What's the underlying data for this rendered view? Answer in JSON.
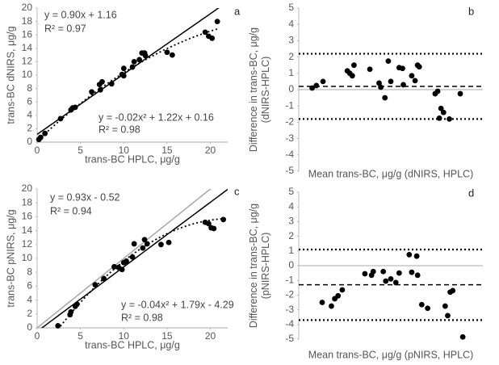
{
  "chart_data": [
    {
      "type": "scatter",
      "panel_label": "a",
      "x_label": "trans-BC HPLC, μg/g",
      "y_label": [
        "trans-BC dNIRS, μg/g"
      ],
      "xlim": [
        0,
        22
      ],
      "xticks": [
        0,
        5,
        10,
        15,
        20
      ],
      "ylim": [
        0,
        20
      ],
      "yticks": [
        0,
        2,
        4,
        6,
        8,
        10,
        12,
        14,
        16,
        18,
        20
      ],
      "annotations": [
        "y = 0.90x + 1.16",
        "R² = 0.97",
        "y = -0.02x² + 1.22x + 0.16",
        "R² = 0.98"
      ],
      "color": "#000000",
      "trendlines": [
        {
          "coef": [
            1.16,
            0.9
          ],
          "style": "solid",
          "color": "#000000"
        },
        {
          "coef": [
            0.16,
            1.22,
            -0.02
          ],
          "style": "dotted",
          "color": "#000000"
        }
      ],
      "x": [
        0.2,
        0.4,
        0.9,
        2.7,
        3.9,
        4.1,
        4.4,
        6.3,
        7.2,
        7.3,
        7.5,
        8.6,
        9.8,
        10.0,
        10.0,
        11.0,
        11.2,
        11.8,
        12.1,
        12.4,
        12.5,
        15.0,
        15.6,
        19.4,
        19.8,
        20.2,
        20.8
      ],
      "values": [
        0.4,
        0.7,
        1.3,
        3.5,
        4.8,
        5.1,
        5.2,
        7.5,
        8.6,
        7.8,
        9.0,
        8.7,
        10.1,
        9.9,
        11.0,
        11.2,
        12.0,
        12.3,
        13.3,
        13.3,
        12.9,
        13.4,
        13.0,
        16.4,
        15.8,
        15.5,
        18.0
      ]
    },
    {
      "type": "bland-altman",
      "panel_label": "b",
      "x_label": "Mean trans-BC, μg/g (dNIRS, HPLC)",
      "y_label": [
        "Difference in trans-BC, μg/g",
        "(dNIRS-HPLC)"
      ],
      "xlim": [
        0,
        22
      ],
      "ylim": [
        -5,
        5
      ],
      "yticks": [
        -5,
        -4,
        -3,
        -2,
        -1,
        0,
        1,
        2,
        3,
        4,
        5
      ],
      "color": "#000000",
      "hlines": [
        {
          "value": 2.2,
          "style": "dotted"
        },
        {
          "value": 0.2,
          "style": "dashed"
        },
        {
          "value": -1.8,
          "style": "dotted"
        }
      ],
      "x": [
        1.6,
        2.1,
        2.9,
        5.8,
        6.1,
        6.4,
        6.6,
        8.5,
        9.6,
        9.8,
        10.3,
        10.7,
        11.0,
        12.0,
        12.4,
        12.5,
        13.5,
        13.9,
        14.2,
        14.4,
        16.3,
        16.6,
        16.8,
        17.0,
        17.3,
        18.0,
        19.3
      ],
      "values": [
        0.1,
        0.25,
        0.5,
        1.15,
        1.0,
        0.85,
        1.5,
        1.25,
        0.4,
        0.15,
        -0.5,
        1.75,
        0.5,
        1.35,
        1.3,
        0.3,
        0.85,
        0.55,
        1.5,
        1.4,
        -0.25,
        -0.1,
        -1.75,
        -1.15,
        -1.4,
        -1.8,
        -0.25
      ]
    },
    {
      "type": "scatter",
      "panel_label": "c",
      "x_label": "trans-BC HPLC, μg/g",
      "y_label": [
        "trans-BC pNIRS, μg/g"
      ],
      "xlim": [
        0,
        22
      ],
      "xticks": [
        0,
        5,
        10,
        15,
        20
      ],
      "ylim": [
        0,
        20
      ],
      "yticks": [
        0,
        2,
        4,
        6,
        8,
        10,
        12,
        14,
        16,
        18,
        20
      ],
      "annotations": [
        "y = 0.93x - 0.52",
        "R² = 0.94",
        "y = -0.04x² + 1.79x - 4.29",
        "R² = 0.98"
      ],
      "color": "#000000",
      "trendlines": [
        {
          "coef": [
            0,
            1
          ],
          "style": "solid",
          "color": "#a6a6a6"
        },
        {
          "coef": [
            -0.52,
            0.93
          ],
          "style": "solid",
          "color": "#000000"
        },
        {
          "coef": [
            -4.29,
            1.79,
            -0.04
          ],
          "style": "dotted",
          "color": "#000000"
        }
      ],
      "x": [
        2.4,
        3.8,
        3.9,
        4.4,
        4.6,
        6.7,
        7.7,
        8.9,
        9.4,
        9.8,
        10.0,
        10.3,
        11.0,
        11.2,
        12.2,
        12.4,
        12.7,
        14.3,
        15.2,
        19.4,
        19.8,
        20.1,
        20.4,
        21.5
      ],
      "values": [
        0.3,
        1.9,
        2.3,
        3.1,
        3.4,
        6.2,
        7.1,
        8.8,
        8.7,
        8.4,
        9.4,
        9.6,
        10.2,
        12.1,
        11.5,
        12.7,
        12.1,
        12.0,
        12.3,
        15.2,
        15.0,
        14.4,
        14.3,
        15.6
      ]
    },
    {
      "type": "bland-altman",
      "panel_label": "d",
      "x_label": "Mean trans-BC, μg/g (pNIRS, HPLC)",
      "y_label": [
        "Difference in trans-BC, μg/g",
        "(pNIRS-HPLC)"
      ],
      "xlim": [
        0,
        22
      ],
      "ylim": [
        -5,
        5
      ],
      "yticks": [
        -5,
        -4,
        -3,
        -2,
        -1,
        0,
        1,
        2,
        3,
        4,
        5
      ],
      "color": "#000000",
      "hlines": [
        {
          "value": 1.1,
          "style": "dotted"
        },
        {
          "value": -1.3,
          "style": "dashed"
        },
        {
          "value": -3.7,
          "style": "dotted"
        }
      ],
      "x": [
        2.8,
        3.9,
        4.3,
        4.7,
        5.2,
        7.9,
        8.7,
        8.9,
        10.1,
        10.4,
        11.0,
        11.6,
        12.0,
        13.2,
        13.5,
        14.1,
        14.2,
        14.7,
        15.4,
        17.5,
        18.1,
        18.4,
        17.8,
        19.6
      ],
      "values": [
        -2.5,
        -2.75,
        -2.25,
        -2.05,
        -1.65,
        -0.55,
        -0.65,
        -0.4,
        -0.4,
        -1.05,
        -0.9,
        -1.15,
        -0.5,
        0.75,
        -0.45,
        0.65,
        -0.65,
        -2.65,
        -2.9,
        -2.75,
        -1.8,
        -1.7,
        -3.4,
        -4.85
      ]
    }
  ]
}
